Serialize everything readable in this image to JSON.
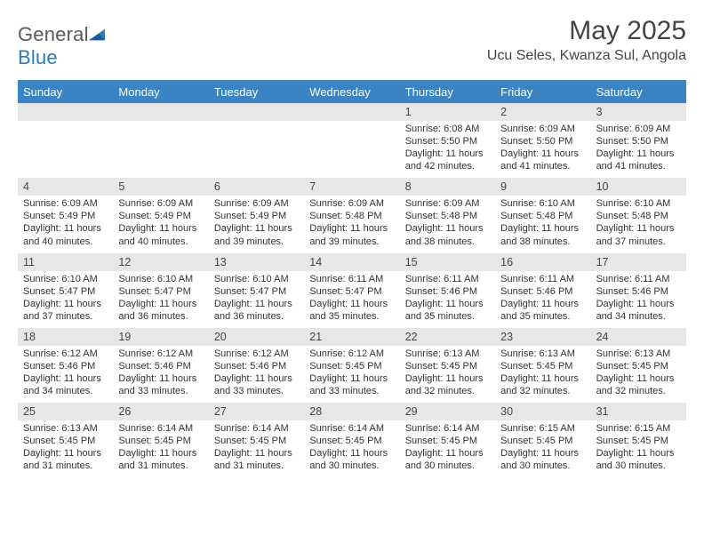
{
  "brand": {
    "part1": "General",
    "part2": "Blue"
  },
  "title": "May 2025",
  "location": "Ucu Seles, Kwanza Sul, Angola",
  "colors": {
    "header_bar": "#3a84c4",
    "numrow_bg": "#e7e7e7",
    "text": "#333333",
    "title_text": "#444444"
  },
  "weekday_labels": [
    "Sunday",
    "Monday",
    "Tuesday",
    "Wednesday",
    "Thursday",
    "Friday",
    "Saturday"
  ],
  "weeks": [
    {
      "nums": [
        "",
        "",
        "",
        "",
        "1",
        "2",
        "3"
      ],
      "cells": [
        null,
        null,
        null,
        null,
        {
          "sunrise": "6:08 AM",
          "sunset": "5:50 PM",
          "daylight": "11 hours and 42 minutes."
        },
        {
          "sunrise": "6:09 AM",
          "sunset": "5:50 PM",
          "daylight": "11 hours and 41 minutes."
        },
        {
          "sunrise": "6:09 AM",
          "sunset": "5:50 PM",
          "daylight": "11 hours and 41 minutes."
        }
      ]
    },
    {
      "nums": [
        "4",
        "5",
        "6",
        "7",
        "8",
        "9",
        "10"
      ],
      "cells": [
        {
          "sunrise": "6:09 AM",
          "sunset": "5:49 PM",
          "daylight": "11 hours and 40 minutes."
        },
        {
          "sunrise": "6:09 AM",
          "sunset": "5:49 PM",
          "daylight": "11 hours and 40 minutes."
        },
        {
          "sunrise": "6:09 AM",
          "sunset": "5:49 PM",
          "daylight": "11 hours and 39 minutes."
        },
        {
          "sunrise": "6:09 AM",
          "sunset": "5:48 PM",
          "daylight": "11 hours and 39 minutes."
        },
        {
          "sunrise": "6:09 AM",
          "sunset": "5:48 PM",
          "daylight": "11 hours and 38 minutes."
        },
        {
          "sunrise": "6:10 AM",
          "sunset": "5:48 PM",
          "daylight": "11 hours and 38 minutes."
        },
        {
          "sunrise": "6:10 AM",
          "sunset": "5:48 PM",
          "daylight": "11 hours and 37 minutes."
        }
      ]
    },
    {
      "nums": [
        "11",
        "12",
        "13",
        "14",
        "15",
        "16",
        "17"
      ],
      "cells": [
        {
          "sunrise": "6:10 AM",
          "sunset": "5:47 PM",
          "daylight": "11 hours and 37 minutes."
        },
        {
          "sunrise": "6:10 AM",
          "sunset": "5:47 PM",
          "daylight": "11 hours and 36 minutes."
        },
        {
          "sunrise": "6:10 AM",
          "sunset": "5:47 PM",
          "daylight": "11 hours and 36 minutes."
        },
        {
          "sunrise": "6:11 AM",
          "sunset": "5:47 PM",
          "daylight": "11 hours and 35 minutes."
        },
        {
          "sunrise": "6:11 AM",
          "sunset": "5:46 PM",
          "daylight": "11 hours and 35 minutes."
        },
        {
          "sunrise": "6:11 AM",
          "sunset": "5:46 PM",
          "daylight": "11 hours and 35 minutes."
        },
        {
          "sunrise": "6:11 AM",
          "sunset": "5:46 PM",
          "daylight": "11 hours and 34 minutes."
        }
      ]
    },
    {
      "nums": [
        "18",
        "19",
        "20",
        "21",
        "22",
        "23",
        "24"
      ],
      "cells": [
        {
          "sunrise": "6:12 AM",
          "sunset": "5:46 PM",
          "daylight": "11 hours and 34 minutes."
        },
        {
          "sunrise": "6:12 AM",
          "sunset": "5:46 PM",
          "daylight": "11 hours and 33 minutes."
        },
        {
          "sunrise": "6:12 AM",
          "sunset": "5:46 PM",
          "daylight": "11 hours and 33 minutes."
        },
        {
          "sunrise": "6:12 AM",
          "sunset": "5:45 PM",
          "daylight": "11 hours and 33 minutes."
        },
        {
          "sunrise": "6:13 AM",
          "sunset": "5:45 PM",
          "daylight": "11 hours and 32 minutes."
        },
        {
          "sunrise": "6:13 AM",
          "sunset": "5:45 PM",
          "daylight": "11 hours and 32 minutes."
        },
        {
          "sunrise": "6:13 AM",
          "sunset": "5:45 PM",
          "daylight": "11 hours and 32 minutes."
        }
      ]
    },
    {
      "nums": [
        "25",
        "26",
        "27",
        "28",
        "29",
        "30",
        "31"
      ],
      "cells": [
        {
          "sunrise": "6:13 AM",
          "sunset": "5:45 PM",
          "daylight": "11 hours and 31 minutes."
        },
        {
          "sunrise": "6:14 AM",
          "sunset": "5:45 PM",
          "daylight": "11 hours and 31 minutes."
        },
        {
          "sunrise": "6:14 AM",
          "sunset": "5:45 PM",
          "daylight": "11 hours and 31 minutes."
        },
        {
          "sunrise": "6:14 AM",
          "sunset": "5:45 PM",
          "daylight": "11 hours and 30 minutes."
        },
        {
          "sunrise": "6:14 AM",
          "sunset": "5:45 PM",
          "daylight": "11 hours and 30 minutes."
        },
        {
          "sunrise": "6:15 AM",
          "sunset": "5:45 PM",
          "daylight": "11 hours and 30 minutes."
        },
        {
          "sunrise": "6:15 AM",
          "sunset": "5:45 PM",
          "daylight": "11 hours and 30 minutes."
        }
      ]
    }
  ],
  "labels": {
    "sunrise": "Sunrise: ",
    "sunset": "Sunset: ",
    "daylight": "Daylight: "
  }
}
